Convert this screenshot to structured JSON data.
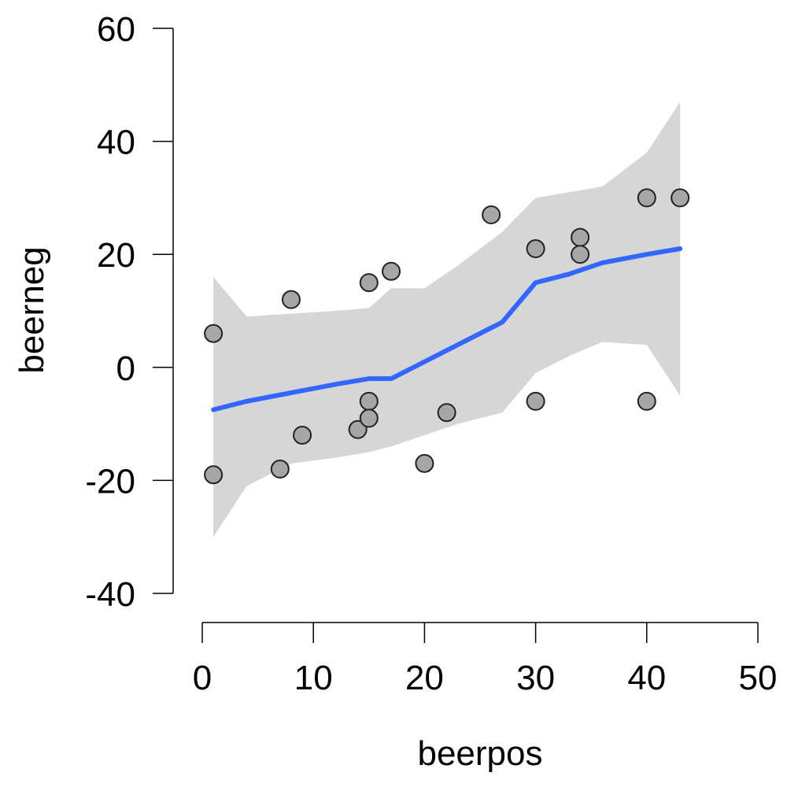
{
  "chart_data": {
    "type": "scatter",
    "title": "",
    "xlabel": "beerpos",
    "ylabel": "beerneg",
    "xlim": [
      0,
      50
    ],
    "ylim": [
      -40,
      60
    ],
    "x_ticks": [
      "0",
      "10",
      "20",
      "30",
      "40",
      "50"
    ],
    "y_ticks": [
      "-40",
      "-20",
      "0",
      "20",
      "40",
      "60"
    ],
    "grid": false,
    "points": [
      {
        "x": 1,
        "y": 6
      },
      {
        "x": 1,
        "y": -19
      },
      {
        "x": 7,
        "y": -18
      },
      {
        "x": 8,
        "y": 12
      },
      {
        "x": 9,
        "y": -12
      },
      {
        "x": 14,
        "y": -11
      },
      {
        "x": 15,
        "y": 15
      },
      {
        "x": 15,
        "y": -6
      },
      {
        "x": 15,
        "y": -9
      },
      {
        "x": 17,
        "y": 17
      },
      {
        "x": 20,
        "y": -17
      },
      {
        "x": 22,
        "y": -8
      },
      {
        "x": 26,
        "y": 27
      },
      {
        "x": 30,
        "y": 21
      },
      {
        "x": 30,
        "y": -6
      },
      {
        "x": 34,
        "y": 23
      },
      {
        "x": 34,
        "y": 20
      },
      {
        "x": 40,
        "y": 30
      },
      {
        "x": 40,
        "y": -6
      },
      {
        "x": 43,
        "y": 30
      }
    ],
    "smooth": {
      "x": [
        1,
        4,
        8,
        12,
        15,
        17,
        20,
        23,
        27,
        30,
        33,
        36,
        40,
        43
      ],
      "fit": [
        -7.5,
        -6,
        -4.5,
        -3,
        -2,
        -2,
        1,
        4,
        8,
        15,
        16.5,
        18.5,
        20,
        21
      ],
      "lower": [
        -30,
        -21,
        -17,
        -16,
        -15,
        -14,
        -12,
        -10,
        -8,
        -1,
        2,
        4.5,
        4,
        -5
      ],
      "upper": [
        16,
        9,
        9.5,
        10,
        10.5,
        14,
        14,
        18,
        24,
        30,
        31,
        32,
        38,
        47
      ]
    },
    "colors": {
      "line": "#3366FF",
      "band": "#D6D6D6",
      "point_fill": "#A6A6A6",
      "point_stroke": "#222222",
      "axis": "#000000"
    }
  }
}
